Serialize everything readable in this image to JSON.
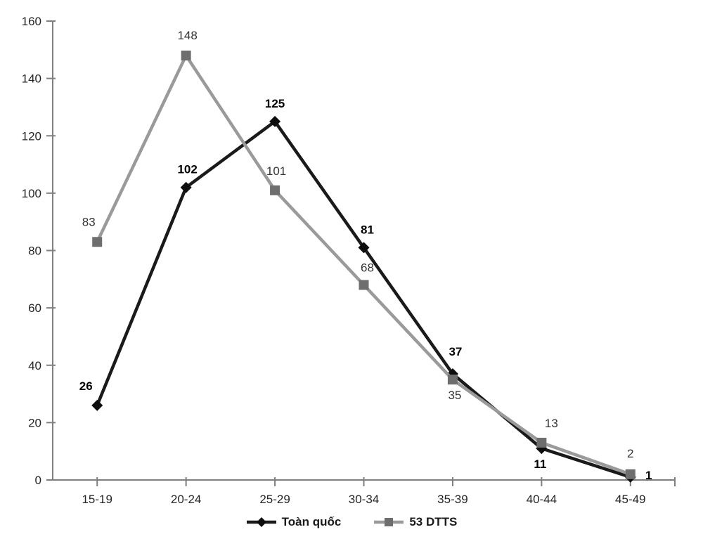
{
  "figure": {
    "background_color": "#ffffff",
    "axis_color": "#7f7f7f",
    "tick_label_color": "#262626"
  },
  "chart_data": {
    "type": "line",
    "title": "",
    "xlabel": "",
    "ylabel": "",
    "categories": [
      "15-19",
      "20-24",
      "25-29",
      "30-34",
      "35-39",
      "40-44",
      "45-49"
    ],
    "y_axis": {
      "min": 0,
      "max": 160,
      "step": 20,
      "ticks": [
        0,
        20,
        40,
        60,
        80,
        100,
        120,
        140,
        160
      ]
    },
    "grid": false,
    "legend_position": "bottom-center",
    "series": [
      {
        "name": "Toàn quốc",
        "values": [
          26,
          102,
          125,
          81,
          37,
          11,
          1
        ],
        "line_color": "#1a1a1a",
        "marker": "diamond",
        "marker_color": "#0d0d0d",
        "label_color": "#000000",
        "label_bold": true,
        "label_offsets": [
          [
            -16,
            -22
          ],
          [
            2,
            -20
          ],
          [
            0,
            -20
          ],
          [
            5,
            -20
          ],
          [
            4,
            -26
          ],
          [
            -2,
            28
          ],
          [
            26,
            3
          ]
        ]
      },
      {
        "name": "53 DTTS",
        "values": [
          83,
          148,
          101,
          68,
          35,
          13,
          2
        ],
        "line_color": "#9a9a9a",
        "marker": "square",
        "marker_color": "#6e6e6e",
        "label_color": "#333333",
        "label_bold": false,
        "label_offsets": [
          [
            -12,
            -23
          ],
          [
            2,
            -23
          ],
          [
            2,
            -22
          ],
          [
            5,
            -19
          ],
          [
            3,
            28
          ],
          [
            14,
            -22
          ],
          [
            0,
            -24
          ]
        ]
      }
    ]
  }
}
